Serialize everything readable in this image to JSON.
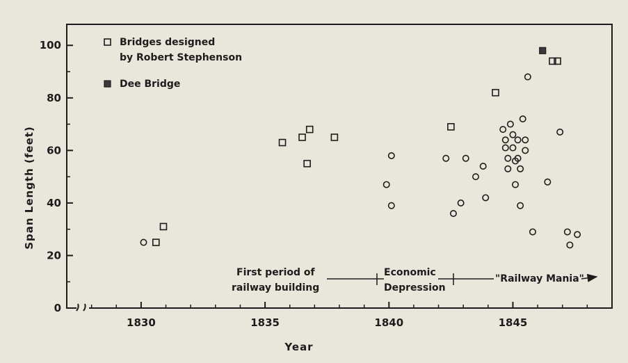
{
  "chart_data": {
    "type": "scatter",
    "xlabel": "Year",
    "ylabel": "Span Length (feet)",
    "xlim": [
      1827,
      1849
    ],
    "ylim": [
      0,
      108
    ],
    "x_ticks": [
      "1830",
      "1835",
      "1840",
      "1845"
    ],
    "y_ticks": [
      "0",
      "20",
      "40",
      "60",
      "80",
      "100"
    ],
    "grid": false,
    "legend": {
      "placement": "top-left",
      "entries": [
        {
          "label_lines": [
            "Bridges designed",
            "by Robert Stephenson"
          ],
          "marker": "hollow-square"
        },
        {
          "label_lines": [
            "Dee Bridge"
          ],
          "marker": "filled-square"
        }
      ]
    },
    "series": [
      {
        "name": "Bridges designed by Robert Stephenson",
        "marker": "hollow",
        "points": [
          [
            1830.6,
            25
          ],
          [
            1830.9,
            31
          ],
          [
            1835.7,
            63
          ],
          [
            1836.5,
            65
          ],
          [
            1836.7,
            55
          ],
          [
            1836.8,
            68
          ],
          [
            1837.8,
            65
          ],
          [
            1842.5,
            69
          ],
          [
            1844.3,
            82
          ],
          [
            1846.6,
            94
          ],
          [
            1846.8,
            94
          ]
        ]
      },
      {
        "name": "Dee Bridge",
        "marker": "filled",
        "points": [
          [
            1846.2,
            98
          ]
        ]
      },
      {
        "name": "unlabeled points",
        "marker": "circle",
        "points": [
          [
            1830.1,
            25
          ],
          [
            1840.1,
            58
          ],
          [
            1839.9,
            47
          ],
          [
            1840.1,
            39
          ],
          [
            1842.3,
            57
          ],
          [
            1842.6,
            36
          ],
          [
            1842.9,
            40
          ],
          [
            1843.1,
            57
          ],
          [
            1843.5,
            50
          ],
          [
            1843.8,
            54
          ],
          [
            1843.9,
            42
          ],
          [
            1844.6,
            68
          ],
          [
            1844.7,
            64
          ],
          [
            1844.7,
            61
          ],
          [
            1844.8,
            57
          ],
          [
            1844.8,
            53
          ],
          [
            1844.9,
            70
          ],
          [
            1845.0,
            66
          ],
          [
            1845.0,
            61
          ],
          [
            1845.1,
            56
          ],
          [
            1845.1,
            47
          ],
          [
            1845.2,
            64
          ],
          [
            1845.2,
            57
          ],
          [
            1845.3,
            53
          ],
          [
            1845.3,
            39
          ],
          [
            1845.4,
            72
          ],
          [
            1845.5,
            64
          ],
          [
            1845.5,
            60
          ],
          [
            1845.6,
            88
          ],
          [
            1846.4,
            48
          ],
          [
            1846.9,
            67
          ],
          [
            1847.2,
            29
          ],
          [
            1847.3,
            24
          ],
          [
            1847.6,
            28
          ],
          [
            1845.8,
            29
          ]
        ]
      }
    ],
    "annotations": {
      "periods": [
        {
          "lines": [
            "First period of",
            "railway building"
          ]
        },
        {
          "lines": [
            "Economic",
            "Depression"
          ]
        },
        {
          "label": "\"Railway Mania\""
        }
      ]
    }
  }
}
